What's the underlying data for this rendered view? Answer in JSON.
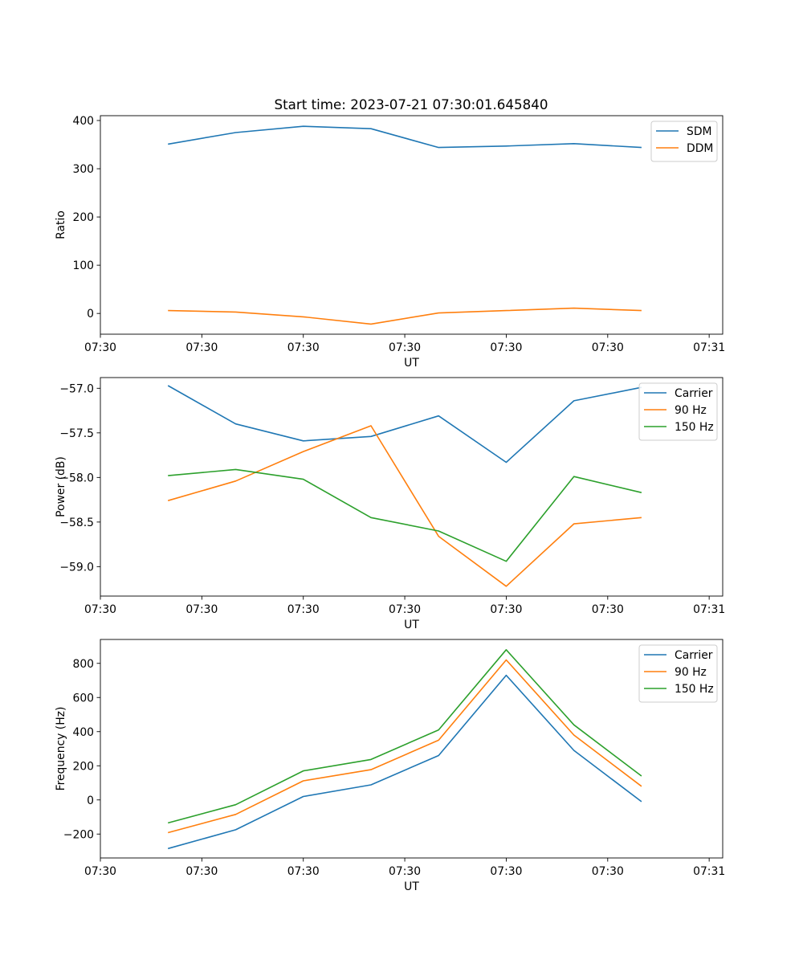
{
  "figure_title": "Start time: 2023-07-21 07:30:01.645840",
  "colors": {
    "blue": "#1f77b4",
    "orange": "#ff7f0e",
    "green": "#2ca02c"
  },
  "chart_data": [
    {
      "type": "line",
      "title": "Start time: 2023-07-21 07:30:01.645840",
      "xlabel": "UT",
      "ylabel": "Ratio",
      "x": [
        1,
        2,
        3,
        4,
        5,
        6,
        7,
        8
      ],
      "xlim": [
        0,
        9.2
      ],
      "x_tick_positions": [
        0,
        1.5,
        3,
        4.5,
        6,
        7.5,
        9
      ],
      "x_tick_labels": [
        "07:30",
        "07:30",
        "07:30",
        "07:30",
        "07:30",
        "07:30",
        "07:31"
      ],
      "ylim": [
        -43,
        410
      ],
      "y_ticks": [
        0,
        100,
        200,
        300,
        400
      ],
      "y_tick_labels": [
        "0",
        "100",
        "200",
        "300",
        "400"
      ],
      "legend": "top-right",
      "series": [
        {
          "name": "SDM",
          "color": "#1f77b4",
          "values": [
            351,
            375,
            388,
            383,
            344,
            347,
            352,
            344
          ]
        },
        {
          "name": "DDM",
          "color": "#ff7f0e",
          "values": [
            6,
            3,
            -7,
            -22,
            1,
            6,
            11,
            6
          ]
        }
      ]
    },
    {
      "type": "line",
      "title": "",
      "xlabel": "UT",
      "ylabel": "Power (dB)",
      "x": [
        1,
        2,
        3,
        4,
        5,
        6,
        7,
        8
      ],
      "xlim": [
        0,
        9.2
      ],
      "x_tick_positions": [
        0,
        1.5,
        3,
        4.5,
        6,
        7.5,
        9
      ],
      "x_tick_labels": [
        "07:30",
        "07:30",
        "07:30",
        "07:30",
        "07:30",
        "07:30",
        "07:31"
      ],
      "ylim": [
        -59.33,
        -56.88
      ],
      "y_ticks": [
        -57.0,
        -57.5,
        -58.0,
        -58.5,
        -59.0
      ],
      "y_tick_labels": [
        "−57.0",
        "−57.5",
        "−58.0",
        "−58.5",
        "−59.0"
      ],
      "legend": "top-right",
      "series": [
        {
          "name": "Carrier",
          "color": "#1f77b4",
          "values": [
            -56.97,
            -57.4,
            -57.59,
            -57.54,
            -57.31,
            -57.83,
            -57.14,
            -56.99
          ]
        },
        {
          "name": "90 Hz",
          "color": "#ff7f0e",
          "values": [
            -58.26,
            -58.04,
            -57.71,
            -57.42,
            -58.66,
            -59.22,
            -58.52,
            -58.45
          ]
        },
        {
          "name": "150 Hz",
          "color": "#2ca02c",
          "values": [
            -57.98,
            -57.91,
            -58.02,
            -58.45,
            -58.6,
            -58.94,
            -57.99,
            -58.17
          ]
        }
      ]
    },
    {
      "type": "line",
      "title": "",
      "xlabel": "UT",
      "ylabel": "Frequency (Hz)",
      "x": [
        1,
        2,
        3,
        4,
        5,
        6,
        7,
        8
      ],
      "xlim": [
        0,
        9.2
      ],
      "x_tick_positions": [
        0,
        1.5,
        3,
        4.5,
        6,
        7.5,
        9
      ],
      "x_tick_labels": [
        "07:30",
        "07:30",
        "07:30",
        "07:30",
        "07:30",
        "07:30",
        "07:31"
      ],
      "ylim": [
        -340,
        940
      ],
      "y_ticks": [
        800,
        600,
        400,
        200,
        0,
        -200
      ],
      "y_tick_labels": [
        "800",
        "600",
        "400",
        "200",
        "0",
        "−200"
      ],
      "legend": "top-right",
      "series": [
        {
          "name": "Carrier",
          "color": "#1f77b4",
          "values": [
            -285,
            -175,
            20,
            88,
            260,
            730,
            290,
            -10
          ]
        },
        {
          "name": "90 Hz",
          "color": "#ff7f0e",
          "values": [
            -192,
            -85,
            112,
            177,
            350,
            820,
            380,
            80
          ]
        },
        {
          "name": "150 Hz",
          "color": "#2ca02c",
          "values": [
            -135,
            -28,
            170,
            237,
            410,
            880,
            440,
            140
          ]
        }
      ]
    }
  ]
}
